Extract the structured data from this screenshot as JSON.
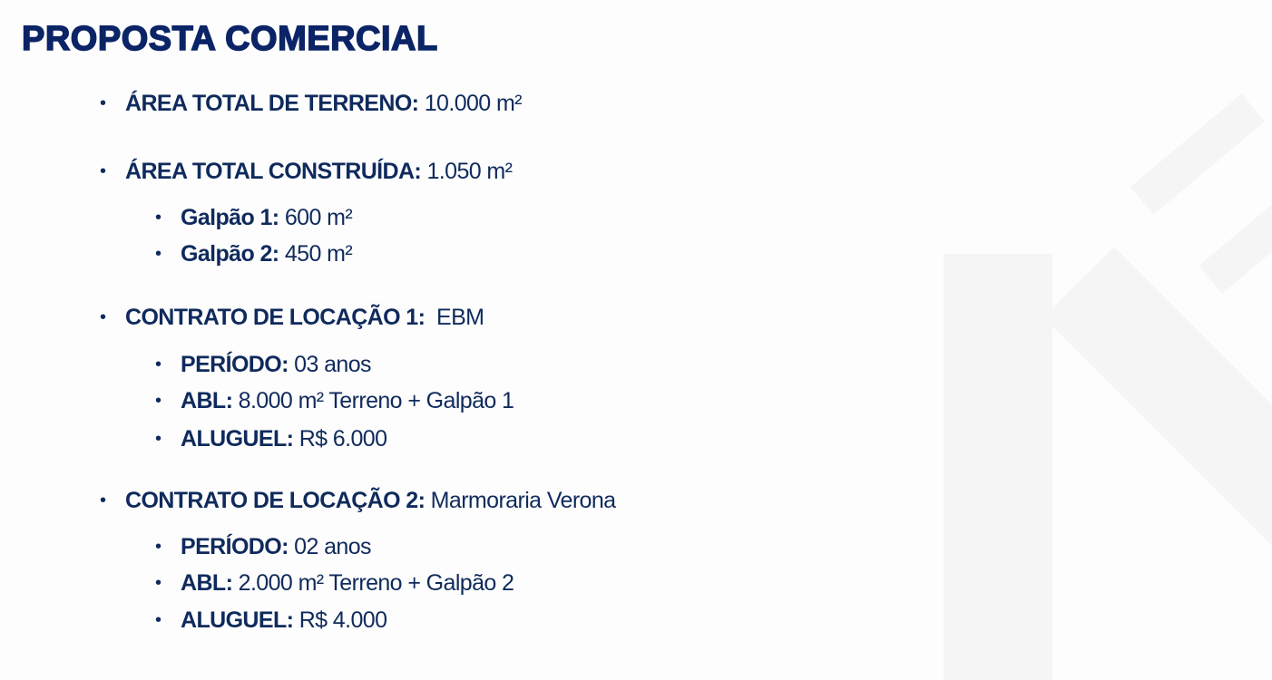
{
  "title": "PROPOSTA COMERCIAL",
  "colors": {
    "title": "#0b2466",
    "text": "#0f2a5c",
    "background": "#fdfdfd"
  },
  "items": [
    {
      "label": "ÁREA TOTAL DE TERRENO:",
      "value": " 10.000 m²"
    },
    {
      "label": "ÁREA TOTAL CONSTRUÍDA:",
      "value": " 1.050 m²",
      "children": [
        {
          "label": "Galpão 1:",
          "value": " 600 m²"
        },
        {
          "label": "Galpão 2:",
          "value": " 450 m²"
        }
      ]
    },
    {
      "label": "CONTRATO DE LOCAÇÃO 1:",
      "value": "  EBM",
      "children": [
        {
          "label": "PERÍODO:",
          "value": " 03 anos"
        },
        {
          "label": "ABL:",
          "value": " 8.000 m² Terreno + Galpão 1"
        },
        {
          "label": "ALUGUEL:",
          "value": " R$ 6.000"
        }
      ]
    },
    {
      "label": "CONTRATO DE LOCAÇÃO 2:",
      "value": " Marmoraria Verona",
      "children": [
        {
          "label": "PERÍODO:",
          "value": " 02 anos"
        },
        {
          "label": "ABL:",
          "value": " 2.000 m² Terreno + Galpão 2"
        },
        {
          "label": "ALUGUEL:",
          "value": " R$ 4.000"
        }
      ]
    }
  ]
}
